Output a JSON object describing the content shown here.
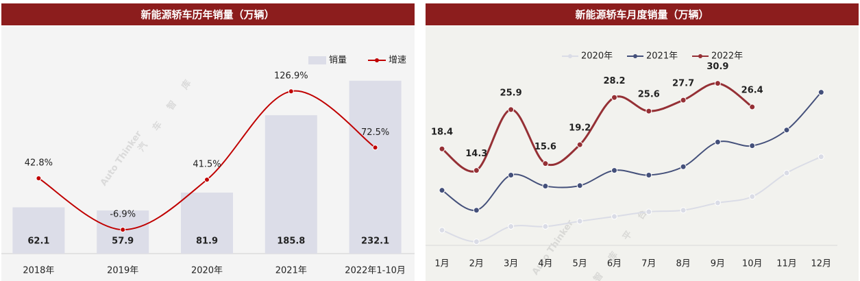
{
  "chart_data": [
    {
      "type": "bar",
      "title": "新能源轿车历年销量（万辆）",
      "categories": [
        "2018年",
        "2019年",
        "2020年",
        "2021年",
        "2022年1-10月"
      ],
      "series": [
        {
          "name": "销量",
          "type": "bar",
          "color": "#dcdde8",
          "values": [
            62.1,
            57.9,
            81.9,
            185.8,
            232.1
          ]
        },
        {
          "name": "增速",
          "type": "line",
          "axis": "y2",
          "color": "#c00000",
          "values": [
            42.8,
            -6.9,
            41.5,
            126.9,
            72.5
          ],
          "value_labels": [
            "42.8%",
            "-6.9%",
            "41.5%",
            "126.9%",
            "72.5%"
          ]
        }
      ],
      "ylim": [
        0,
        300
      ],
      "y2lim": [
        -30,
        186
      ],
      "legend": "top-right",
      "watermark": [
        "Auto Thinker",
        "汽车智库"
      ]
    },
    {
      "type": "line",
      "title": "新能源轿车月度销量（万辆）",
      "categories": [
        "1月",
        "2月",
        "3月",
        "4月",
        "5月",
        "6月",
        "7月",
        "8月",
        "9月",
        "10月",
        "11月",
        "12月"
      ],
      "series": [
        {
          "name": "2020年",
          "color": "#dadce6",
          "values": [
            2.9,
            0.7,
            3.6,
            3.6,
            4.6,
            5.5,
            6.4,
            6.7,
            8.1,
            9.3,
            13.8,
            16.9
          ]
        },
        {
          "name": "2021年",
          "color": "#44507a",
          "values": [
            10.5,
            6.7,
            13.4,
            11.3,
            11.4,
            14.3,
            13.4,
            15.0,
            19.7,
            19.0,
            22.0,
            29.2
          ]
        },
        {
          "name": "2022年",
          "color": "#953035",
          "values": [
            18.4,
            14.3,
            25.9,
            15.6,
            19.2,
            28.2,
            25.6,
            27.7,
            30.9,
            26.4,
            null,
            null
          ],
          "labeled": true
        }
      ],
      "ylim": [
        0,
        40
      ],
      "legend": "top",
      "watermark": [
        "Auto Thinker",
        "智库平台"
      ]
    }
  ]
}
